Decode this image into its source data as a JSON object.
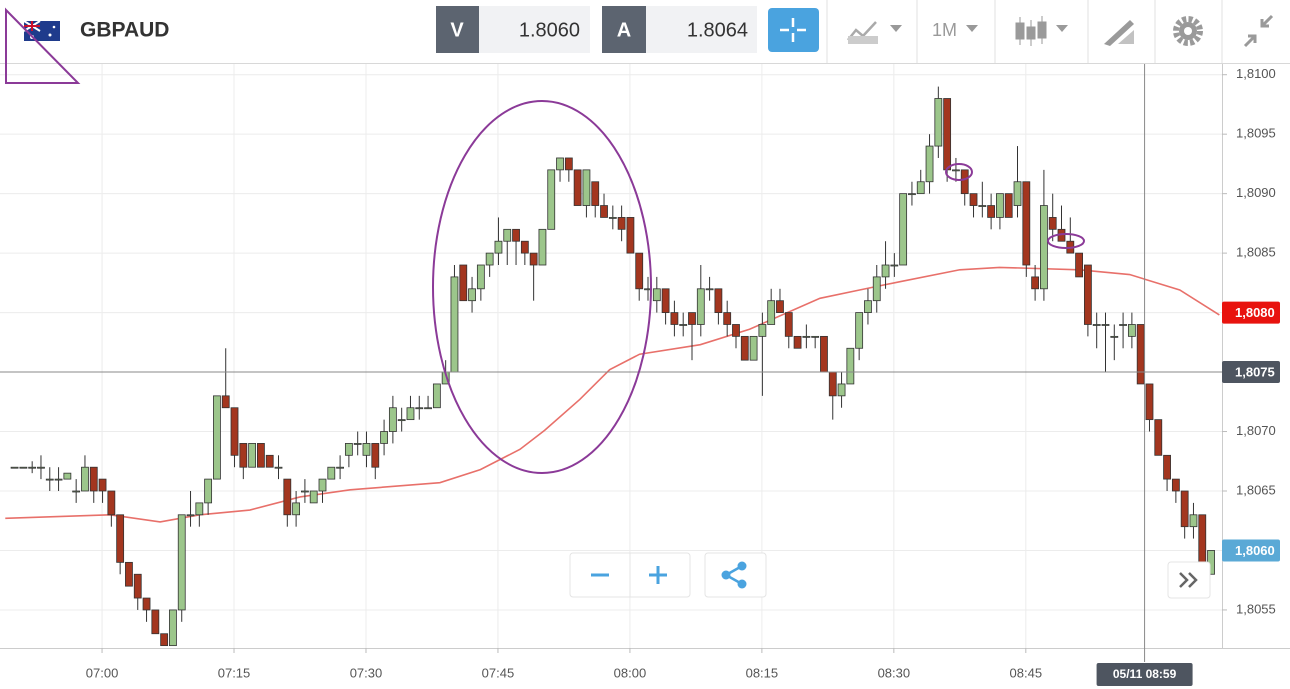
{
  "toolbar": {
    "symbol": "GBPAUD",
    "bid_label": "V",
    "bid": "1.8060",
    "ask_label": "A",
    "ask": "1.8064",
    "timeframe": "1M"
  },
  "chart_data": {
    "type": "candlestick",
    "up_color": "#9cc68b",
    "down_color": "#a3361f",
    "ma_color": "#e8706a",
    "xlim": [
      -1.6,
      137.3
    ],
    "ylim": [
      1.80518,
      1.81009
    ],
    "grid": true,
    "xticks": [
      {
        "value": 10,
        "label": "07:00"
      },
      {
        "value": 25,
        "label": "07:15"
      },
      {
        "value": 40,
        "label": "07:30"
      },
      {
        "value": 55,
        "label": "07:45"
      },
      {
        "value": 70,
        "label": "08:00"
      },
      {
        "value": 85,
        "label": "08:15"
      },
      {
        "value": 100,
        "label": "08:30"
      },
      {
        "value": 115,
        "label": "08:45"
      }
    ],
    "yticks": [
      {
        "value": 1.81,
        "label": "1,8100"
      },
      {
        "value": 1.8095,
        "label": "1,8095"
      },
      {
        "value": 1.809,
        "label": "1,8090"
      },
      {
        "value": 1.8085,
        "label": "1,8085"
      },
      {
        "value": 1.807,
        "label": "1,8070"
      },
      {
        "value": 1.8065,
        "label": "1,8065"
      },
      {
        "value": 1.8055,
        "label": "1,8055"
      }
    ],
    "price_tags": [
      {
        "value": 1.808,
        "label": "1,8080",
        "color": "#e8130e"
      },
      {
        "value": 1.806,
        "label": "1,8060",
        "color": "#5aa9d6"
      }
    ],
    "crosshair": {
      "x": 128.5,
      "x_label": "05/11 08:59",
      "y": 1.8075,
      "y_label": "1,8075"
    },
    "ma": {
      "x": [
        -1.0,
        10.9,
        16.6,
        21.1,
        26.8,
        32.5,
        38.2,
        48.4,
        53.0,
        57.5,
        60.3,
        64.3,
        67.7,
        71.1,
        78.0,
        83.6,
        91.6,
        96.1,
        100.7,
        107.5,
        112.0,
        121.1,
        126.8,
        132.5,
        137.0
      ],
      "values": [
        1.80627,
        1.8063,
        1.80624,
        1.8063,
        1.80634,
        1.80645,
        1.80651,
        1.80657,
        1.80668,
        1.80685,
        1.80701,
        1.80727,
        1.80752,
        1.80765,
        1.80773,
        1.80786,
        1.80812,
        1.80819,
        1.80826,
        1.80836,
        1.80838,
        1.80836,
        1.80832,
        1.80819,
        1.80798
      ]
    },
    "ohlc": [
      [
        1.8067,
        1.8067,
        1.8067,
        1.8067
      ],
      [
        1.8067,
        1.8067,
        1.8067,
        1.8067
      ],
      [
        1.8067,
        1.80675,
        1.80665,
        1.8067
      ],
      [
        1.8067,
        1.8068,
        1.8066,
        1.8067
      ],
      [
        1.8066,
        1.8067,
        1.8065,
        1.8066
      ],
      [
        1.8066,
        1.8067,
        1.8065,
        1.8066
      ],
      [
        1.8066,
        1.80665,
        1.8066,
        1.80665
      ],
      [
        1.8065,
        1.8066,
        1.8064,
        1.8065
      ],
      [
        1.8065,
        1.8068,
        1.8065,
        1.8067
      ],
      [
        1.8067,
        1.8067,
        1.8064,
        1.8065
      ],
      [
        1.8066,
        1.8066,
        1.8064,
        1.8065
      ],
      [
        1.8065,
        1.8065,
        1.8062,
        1.8063
      ],
      [
        1.8063,
        1.8063,
        1.8058,
        1.8059
      ],
      [
        1.8059,
        1.8059,
        1.8057,
        1.8057
      ],
      [
        1.8058,
        1.8058,
        1.8055,
        1.8056
      ],
      [
        1.8056,
        1.8056,
        1.8054,
        1.8055
      ],
      [
        1.8055,
        1.8055,
        1.8053,
        1.8053
      ],
      [
        1.8053,
        1.8053,
        1.8052,
        1.8052
      ],
      [
        1.8052,
        1.8055,
        1.8052,
        1.8055
      ],
      [
        1.8055,
        1.8063,
        1.8054,
        1.8063
      ],
      [
        1.8063,
        1.8065,
        1.8062,
        1.8063
      ],
      [
        1.8063,
        1.8064,
        1.8062,
        1.8064
      ],
      [
        1.8064,
        1.8066,
        1.8063,
        1.8066
      ],
      [
        1.8066,
        1.8073,
        1.8066,
        1.8073
      ],
      [
        1.8073,
        1.8077,
        1.8072,
        1.8072
      ],
      [
        1.8072,
        1.8072,
        1.8067,
        1.8068
      ],
      [
        1.8069,
        1.8069,
        1.8066,
        1.8067
      ],
      [
        1.8067,
        1.8069,
        1.8067,
        1.8069
      ],
      [
        1.8069,
        1.8069,
        1.8067,
        1.8067
      ],
      [
        1.8068,
        1.8068,
        1.8067,
        1.8067
      ],
      [
        1.8067,
        1.8068,
        1.8066,
        1.8067
      ],
      [
        1.8066,
        1.8066,
        1.8062,
        1.8063
      ],
      [
        1.8063,
        1.8065,
        1.8062,
        1.8064
      ],
      [
        1.8065,
        1.8066,
        1.8064,
        1.8065
      ],
      [
        1.8064,
        1.8065,
        1.8064,
        1.8065
      ],
      [
        1.8065,
        1.8066,
        1.8064,
        1.8066
      ],
      [
        1.8066,
        1.8067,
        1.8066,
        1.8067
      ],
      [
        1.8067,
        1.8068,
        1.8066,
        1.8067
      ],
      [
        1.8068,
        1.8069,
        1.8067,
        1.8069
      ],
      [
        1.8069,
        1.807,
        1.8068,
        1.8069
      ],
      [
        1.8068,
        1.807,
        1.8067,
        1.8069
      ],
      [
        1.8069,
        1.8069,
        1.8066,
        1.8067
      ],
      [
        1.8069,
        1.8071,
        1.8068,
        1.807
      ],
      [
        1.807,
        1.8073,
        1.8069,
        1.8072
      ],
      [
        1.8071,
        1.8072,
        1.807,
        1.8071
      ],
      [
        1.8071,
        1.8073,
        1.8071,
        1.8072
      ],
      [
        1.8072,
        1.8073,
        1.8071,
        1.8072
      ],
      [
        1.8072,
        1.8073,
        1.8072,
        1.8072
      ],
      [
        1.8072,
        1.8074,
        1.8072,
        1.8074
      ],
      [
        1.8074,
        1.8076,
        1.8074,
        1.8075
      ],
      [
        1.8075,
        1.8084,
        1.8075,
        1.8083
      ],
      [
        1.8084,
        1.8084,
        1.8081,
        1.8081
      ],
      [
        1.8081,
        1.8083,
        1.808,
        1.8082
      ],
      [
        1.8082,
        1.8084,
        1.8081,
        1.8084
      ],
      [
        1.8084,
        1.8085,
        1.8083,
        1.8085
      ],
      [
        1.8085,
        1.8088,
        1.8084,
        1.8086
      ],
      [
        1.8086,
        1.8087,
        1.8084,
        1.8087
      ],
      [
        1.8087,
        1.8087,
        1.8084,
        1.8086
      ],
      [
        1.8086,
        1.8086,
        1.8084,
        1.8085
      ],
      [
        1.8085,
        1.8085,
        1.8081,
        1.8084
      ],
      [
        1.8084,
        1.8087,
        1.8084,
        1.8087
      ],
      [
        1.8087,
        1.8092,
        1.8087,
        1.8092
      ],
      [
        1.8092,
        1.8093,
        1.8091,
        1.8093
      ],
      [
        1.8093,
        1.8093,
        1.8091,
        1.8092
      ],
      [
        1.8092,
        1.8092,
        1.8089,
        1.8089
      ],
      [
        1.8089,
        1.8092,
        1.8088,
        1.8092
      ],
      [
        1.8091,
        1.8091,
        1.8088,
        1.8089
      ],
      [
        1.8089,
        1.809,
        1.8088,
        1.8088
      ],
      [
        1.8088,
        1.8089,
        1.8087,
        1.8088
      ],
      [
        1.8088,
        1.8089,
        1.8086,
        1.8087
      ],
      [
        1.8088,
        1.8088,
        1.8085,
        1.8085
      ],
      [
        1.8085,
        1.8085,
        1.8081,
        1.8082
      ],
      [
        1.8082,
        1.8083,
        1.8081,
        1.8082
      ],
      [
        1.8081,
        1.8083,
        1.808,
        1.8082
      ],
      [
        1.8082,
        1.8082,
        1.8079,
        1.808
      ],
      [
        1.808,
        1.8081,
        1.8078,
        1.8079
      ],
      [
        1.8079,
        1.808,
        1.8078,
        1.8079
      ],
      [
        1.808,
        1.808,
        1.8076,
        1.8079
      ],
      [
        1.8079,
        1.8084,
        1.8078,
        1.8082
      ],
      [
        1.8082,
        1.8083,
        1.8081,
        1.8082
      ],
      [
        1.8082,
        1.8082,
        1.8079,
        1.808
      ],
      [
        1.808,
        1.8081,
        1.8078,
        1.8079
      ],
      [
        1.8079,
        1.8079,
        1.8077,
        1.8078
      ],
      [
        1.8078,
        1.8078,
        1.8076,
        1.8076
      ],
      [
        1.8076,
        1.8078,
        1.8076,
        1.8078
      ],
      [
        1.8078,
        1.808,
        1.8073,
        1.8079
      ],
      [
        1.8079,
        1.8082,
        1.8079,
        1.8081
      ],
      [
        1.8081,
        1.8082,
        1.808,
        1.808
      ],
      [
        1.808,
        1.808,
        1.8077,
        1.8078
      ],
      [
        1.8078,
        1.8078,
        1.8077,
        1.8077
      ],
      [
        1.8078,
        1.8079,
        1.8077,
        1.8078
      ],
      [
        1.8078,
        1.8078,
        1.8077,
        1.8078
      ],
      [
        1.8078,
        1.8078,
        1.8075,
        1.8075
      ],
      [
        1.8075,
        1.8075,
        1.8071,
        1.8073
      ],
      [
        1.8073,
        1.8075,
        1.8072,
        1.8074
      ],
      [
        1.8074,
        1.8077,
        1.8074,
        1.8077
      ],
      [
        1.8077,
        1.808,
        1.8076,
        1.808
      ],
      [
        1.808,
        1.8082,
        1.8079,
        1.8081
      ],
      [
        1.8081,
        1.8084,
        1.808,
        1.8083
      ],
      [
        1.8083,
        1.8086,
        1.8082,
        1.8084
      ],
      [
        1.8084,
        1.8085,
        1.8083,
        1.8084
      ],
      [
        1.8084,
        1.809,
        1.8084,
        1.809
      ],
      [
        1.809,
        1.8091,
        1.8089,
        1.809
      ],
      [
        1.809,
        1.8092,
        1.809,
        1.8091
      ],
      [
        1.8091,
        1.8095,
        1.809,
        1.8094
      ],
      [
        1.8094,
        1.8099,
        1.8093,
        1.8098
      ],
      [
        1.8098,
        1.8098,
        1.8091,
        1.8092
      ],
      [
        1.8092,
        1.8093,
        1.8091,
        1.8092
      ],
      [
        1.8092,
        1.8092,
        1.8089,
        1.809
      ],
      [
        1.809,
        1.809,
        1.8088,
        1.8089
      ],
      [
        1.8089,
        1.8091,
        1.8088,
        1.8089
      ],
      [
        1.8089,
        1.809,
        1.8087,
        1.8088
      ],
      [
        1.8088,
        1.809,
        1.8087,
        1.809
      ],
      [
        1.809,
        1.809,
        1.8088,
        1.8088
      ],
      [
        1.8089,
        1.8094,
        1.8088,
        1.8091
      ],
      [
        1.8091,
        1.8091,
        1.8083,
        1.8084
      ],
      [
        1.8083,
        1.8084,
        1.8081,
        1.8082
      ],
      [
        1.8082,
        1.8092,
        1.8081,
        1.8089
      ],
      [
        1.8088,
        1.809,
        1.8086,
        1.8087
      ],
      [
        1.8087,
        1.8089,
        1.8086,
        1.8086
      ],
      [
        1.8086,
        1.8088,
        1.8085,
        1.8085
      ],
      [
        1.8085,
        1.8085,
        1.8083,
        1.8083
      ],
      [
        1.8084,
        1.8084,
        1.8078,
        1.8079
      ],
      [
        1.8079,
        1.808,
        1.8077,
        1.8079
      ],
      [
        1.8079,
        1.808,
        1.8075,
        1.8079
      ],
      [
        1.8078,
        1.8079,
        1.8076,
        1.8078
      ],
      [
        1.8079,
        1.808,
        1.8077,
        1.8079
      ],
      [
        1.8078,
        1.808,
        1.8077,
        1.8079
      ],
      [
        1.8079,
        1.8079,
        1.8074,
        1.8074
      ],
      [
        1.8074,
        1.8074,
        1.807,
        1.8071
      ],
      [
        1.8071,
        1.8071,
        1.8068,
        1.8068
      ],
      [
        1.8068,
        1.8068,
        1.8065,
        1.8066
      ],
      [
        1.8066,
        1.8066,
        1.8064,
        1.8065
      ],
      [
        1.8065,
        1.8065,
        1.8061,
        1.8062
      ],
      [
        1.8062,
        1.8064,
        1.8061,
        1.8063
      ],
      [
        1.8063,
        1.8063,
        1.8059,
        1.8059
      ],
      [
        1.8058,
        1.806,
        1.8058,
        1.806
      ]
    ]
  }
}
